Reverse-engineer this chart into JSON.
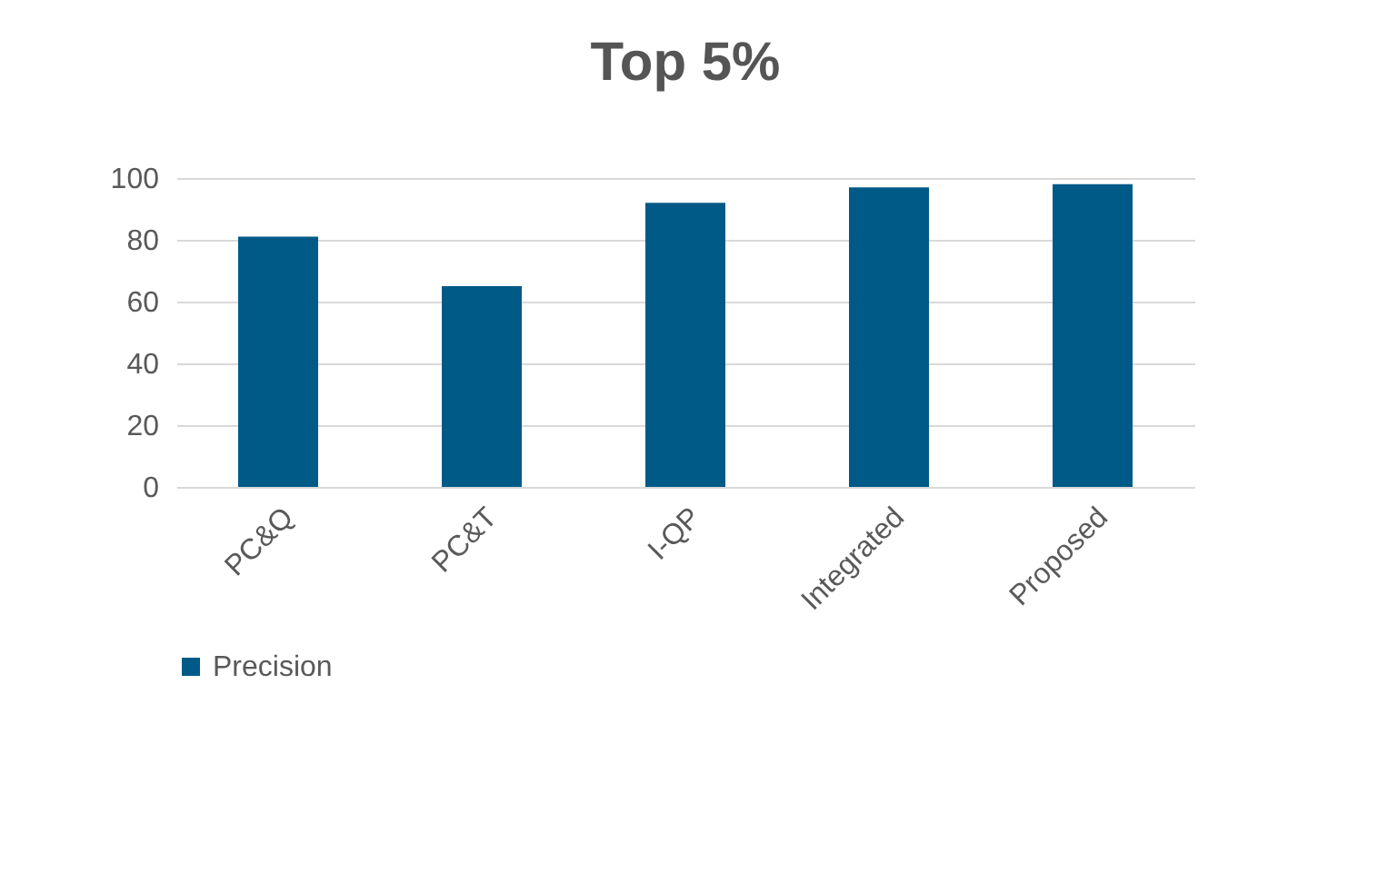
{
  "chart_data": {
    "type": "bar",
    "title": "Top 5%",
    "categories": [
      "PC&Q",
      "PC&T",
      "I-QP",
      "Integrated",
      "Proposed"
    ],
    "series": [
      {
        "name": "Precision",
        "color": "#005a87",
        "values": [
          81,
          65,
          92,
          97,
          98
        ]
      }
    ],
    "ylim": [
      0,
      100
    ],
    "yticks": [
      0,
      20,
      40,
      60,
      80,
      100
    ],
    "grid": "y",
    "legend": "bottom"
  }
}
